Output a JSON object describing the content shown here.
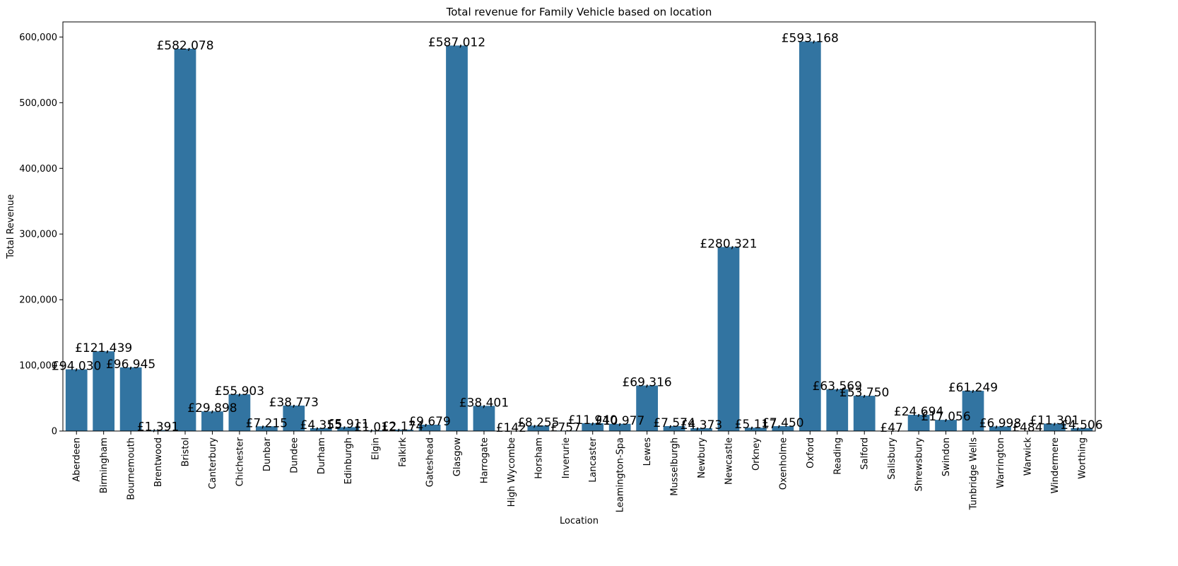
{
  "chart_data": {
    "type": "bar",
    "title": "Total revenue for Family Vehicle based on location",
    "xlabel": "Location",
    "ylabel": "Total Revenue",
    "ylim": [
      0,
      623000
    ],
    "yticks": [
      0,
      100000,
      200000,
      300000,
      400000,
      500000,
      600000
    ],
    "ytick_labels": [
      "0",
      "100,000",
      "200,000",
      "300,000",
      "400,000",
      "500,000",
      "600,000"
    ],
    "bar_color": "#3274a1",
    "grid": false,
    "categories": [
      "Aberdeen",
      "Birmingham",
      "Bournemouth",
      "Brentwood",
      "Bristol",
      "Canterbury",
      "Chichester",
      "Dunbar",
      "Dundee",
      "Durham",
      "Edinburgh",
      "Elgin",
      "Falkirk",
      "Gateshead",
      "Glasgow",
      "Harrogate",
      "High Wycombe",
      "Horsham",
      "Inverurie",
      "Lancaster",
      "Leamington-Spa",
      "Lewes",
      "Musselburgh",
      "Newbury",
      "Newcastle",
      "Orkney",
      "Oxenholme",
      "Oxford",
      "Reading",
      "Salford",
      "Salisbury",
      "Shrewsbury",
      "Swindon",
      "Tunbridge Wells",
      "Warrington",
      "Warwick",
      "Windermere",
      "Worthing"
    ],
    "values": [
      94030,
      121439,
      96945,
      1391,
      582078,
      29898,
      55903,
      7215,
      38773,
      4355,
      5911,
      1012,
      2174,
      9679,
      587012,
      38401,
      142,
      8255,
      757,
      11940,
      10977,
      69316,
      7574,
      4373,
      280321,
      5117,
      7450,
      593168,
      63569,
      53750,
      47,
      24694,
      17056,
      61249,
      6998,
      484,
      11301,
      4506
    ],
    "labels": [
      "£94,030",
      "£121,439",
      "£96,945",
      "£1,391",
      "£582,078",
      "£29,898",
      "£55,903",
      "£7,215",
      "£38,773",
      "£4,355",
      "£5,911",
      "£1,012",
      "£2,174",
      "£9,679",
      "£587,012",
      "£38,401",
      "£142",
      "£8,255",
      "£757",
      "£11,940",
      "£10,977",
      "£69,316",
      "£7,574",
      "£4,373",
      "£280,321",
      "£5,117",
      "£7,450",
      "£593,168",
      "£63,569",
      "£53,750",
      "£47",
      "£24,694",
      "£17,056",
      "£61,249",
      "£6,998",
      "£484",
      "£11,301",
      "£4,506"
    ]
  }
}
